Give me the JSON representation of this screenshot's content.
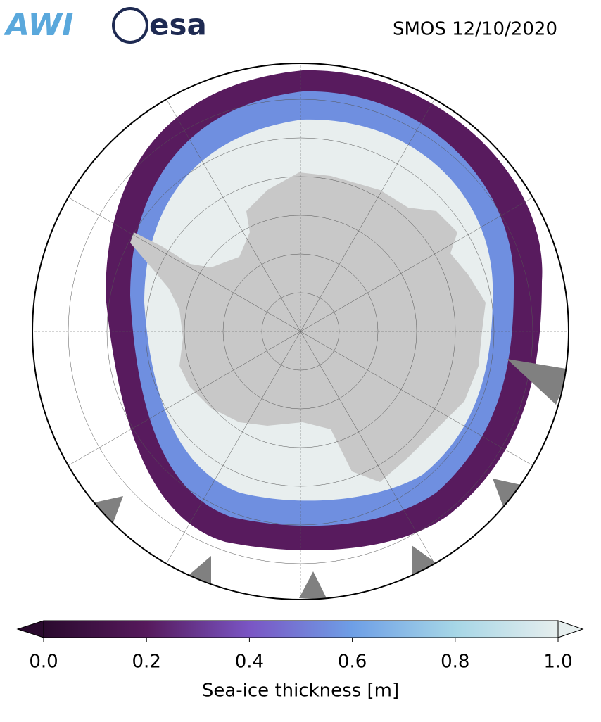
{
  "logos": [
    "AWI",
    "esa"
  ],
  "title": "SMOS 12/10/2020",
  "colorbar": {
    "label": "Sea-ice thickness [m]",
    "range": [
      0,
      1
    ],
    "ticks": [
      {
        "value": 0,
        "label": "0.0"
      },
      {
        "value": 0.2,
        "label": "0.2"
      },
      {
        "value": 0.4,
        "label": "0.4"
      },
      {
        "value": 0.6,
        "label": "0.6"
      },
      {
        "value": 0.8,
        "label": "0.8"
      },
      {
        "value": 1,
        "label": "1.0"
      }
    ],
    "colormap": [
      "#2a0a2e",
      "#561a5c",
      "#7a55c4",
      "#6e9fe6",
      "#a6d6e6",
      "#e6eeee"
    ]
  }
}
